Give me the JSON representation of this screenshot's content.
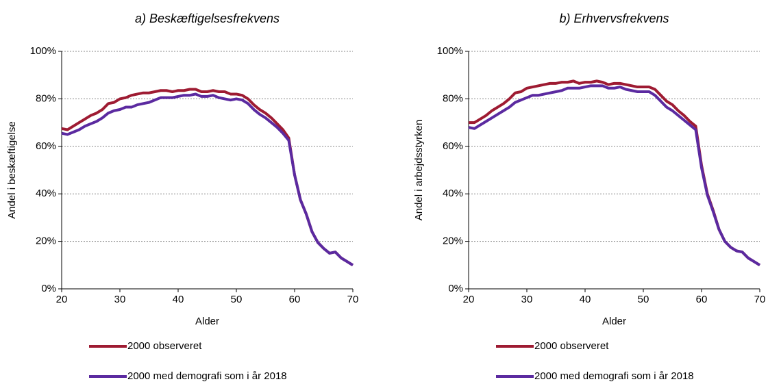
{
  "chart_data": [
    {
      "type": "line",
      "title": "a) Beskæftigelsesfrekvens",
      "xlabel": "Alder",
      "ylabel": "Andel i beskæftigelse",
      "x": [
        20,
        21,
        22,
        23,
        24,
        25,
        26,
        27,
        28,
        29,
        30,
        31,
        32,
        33,
        34,
        35,
        36,
        37,
        38,
        39,
        40,
        41,
        42,
        43,
        44,
        45,
        46,
        47,
        48,
        49,
        50,
        51,
        52,
        53,
        54,
        55,
        56,
        57,
        58,
        59,
        60,
        61,
        62,
        63,
        64,
        65,
        66,
        67,
        68,
        69,
        70
      ],
      "series": [
        {
          "name": "2000 observeret",
          "color": "#9e1b32",
          "values": [
            67.5,
            67,
            68.5,
            70,
            71.5,
            73,
            74,
            75.5,
            78,
            78.5,
            80,
            80.5,
            81.5,
            82,
            82.5,
            82.5,
            83,
            83.5,
            83.5,
            83,
            83.5,
            83.5,
            84,
            84,
            83,
            83,
            83.5,
            83,
            83,
            82,
            82,
            81.5,
            80,
            77.5,
            75.5,
            74,
            72,
            69.5,
            67,
            63.5,
            48,
            37.5,
            31.5,
            24,
            19.5,
            17,
            15,
            15.5,
            13,
            11.5,
            10
          ]
        },
        {
          "name": "2000 med demografi som i år 2018",
          "color": "#5b2aa0",
          "values": [
            65.5,
            65,
            66,
            67,
            68.5,
            69.5,
            70.5,
            72,
            74,
            75,
            75.5,
            76.5,
            76.5,
            77.5,
            78,
            78.5,
            79.5,
            80.5,
            80.5,
            80.5,
            81,
            81.5,
            81.5,
            82,
            81,
            81,
            81.5,
            80.5,
            80,
            79.5,
            80,
            79.5,
            78,
            75.5,
            73.5,
            72,
            70,
            68,
            65.5,
            62.5,
            48,
            37.5,
            31.5,
            24,
            19.5,
            17,
            15,
            15.5,
            13,
            11.5,
            10
          ]
        }
      ],
      "xlim": [
        20,
        70
      ],
      "xticks": [
        20,
        30,
        40,
        50,
        60,
        70
      ],
      "ylim": [
        0,
        100
      ],
      "yticks": [
        {
          "value": 0,
          "label": "0%"
        },
        {
          "value": 20,
          "label": "20%"
        },
        {
          "value": 40,
          "label": "40%"
        },
        {
          "value": 60,
          "label": "60%"
        },
        {
          "value": 80,
          "label": "80%"
        },
        {
          "value": 100,
          "label": "100%"
        }
      ],
      "grid": true,
      "legend": "bottom"
    },
    {
      "type": "line",
      "title": "b) Erhvervsfrekvens",
      "xlabel": "Alder",
      "ylabel": "Andel i arbejdsstyrken",
      "x": [
        20,
        21,
        22,
        23,
        24,
        25,
        26,
        27,
        28,
        29,
        30,
        31,
        32,
        33,
        34,
        35,
        36,
        37,
        38,
        39,
        40,
        41,
        42,
        43,
        44,
        45,
        46,
        47,
        48,
        49,
        50,
        51,
        52,
        53,
        54,
        55,
        56,
        57,
        58,
        59,
        60,
        61,
        62,
        63,
        64,
        65,
        66,
        67,
        68,
        69,
        70
      ],
      "series": [
        {
          "name": "2000 observeret",
          "color": "#9e1b32",
          "values": [
            70,
            70,
            71.5,
            73,
            75,
            76.5,
            78,
            80,
            82.5,
            83,
            84.5,
            85,
            85.5,
            86,
            86.5,
            86.5,
            87,
            87,
            87.5,
            86.5,
            87,
            87,
            87.5,
            87,
            86,
            86.5,
            86.5,
            86,
            85.5,
            85,
            85,
            85,
            84,
            81.5,
            79,
            77.5,
            75,
            73,
            70.5,
            68.5,
            52,
            40,
            33,
            25,
            20,
            17.5,
            16,
            15.5,
            13,
            11.5,
            10
          ]
        },
        {
          "name": "2000 med demografi som i år 2018",
          "color": "#5b2aa0",
          "values": [
            68,
            67.5,
            69,
            70.5,
            72,
            73.5,
            75,
            76.5,
            78.5,
            79.5,
            80.5,
            81.5,
            81.5,
            82,
            82.5,
            83,
            83.5,
            84.5,
            84.5,
            84.5,
            85,
            85.5,
            85.5,
            85.5,
            84.5,
            84.5,
            85,
            84,
            83.5,
            83,
            83,
            83,
            81.5,
            79,
            76.5,
            75,
            73,
            71,
            69,
            67,
            51,
            39.5,
            32.5,
            25,
            20,
            17.5,
            16,
            15.5,
            13,
            11.5,
            10
          ]
        }
      ],
      "xlim": [
        20,
        70
      ],
      "xticks": [
        20,
        30,
        40,
        50,
        60,
        70
      ],
      "ylim": [
        0,
        100
      ],
      "yticks": [
        {
          "value": 0,
          "label": "0%"
        },
        {
          "value": 20,
          "label": "20%"
        },
        {
          "value": 40,
          "label": "40%"
        },
        {
          "value": 60,
          "label": "60%"
        },
        {
          "value": 80,
          "label": "80%"
        },
        {
          "value": 100,
          "label": "100%"
        }
      ],
      "grid": true,
      "legend": "bottom"
    }
  ]
}
